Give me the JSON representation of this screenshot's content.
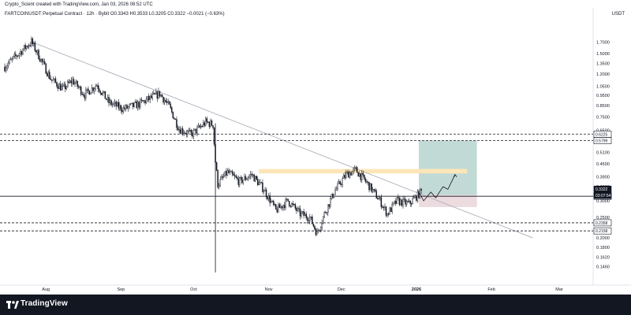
{
  "header": {
    "credit": "Crypto_Scient created with TradingView.com, Jan 03, 2026 08:52 UTC",
    "symbol_line": "FARTCOINUSDT Perpetual Contract · 12h · Bybit  O0.3343  H0.3533  L0.3205  C0.3322  −0.0021 (−0.63%)",
    "currency": "USDT"
  },
  "footer": {
    "brand": "TradingView"
  },
  "colors": {
    "background": "#ffffff",
    "candle": "#131722",
    "trendline": "#b2b5be",
    "dashed_level": "#131722",
    "target_zone": "#b7d3cf",
    "stop_zone": "#ead7dc",
    "resistance_band": "#fce6b8",
    "price_tag": "#131722",
    "footer_bg": "#131722"
  },
  "chart_data": {
    "type": "candlestick",
    "y_scale": "log",
    "y_tick_labels": [
      "1.7000",
      "1.5000",
      "1.3500",
      "1.2000",
      "1.0500",
      "0.9500",
      "0.8500",
      "0.7500",
      "0.6500",
      "0.5100",
      "0.4500",
      "0.3900",
      "0.3500",
      "0.3000",
      "0.2500",
      "0.2000",
      "0.1800",
      "0.1620",
      "0.1460"
    ],
    "x_tick_labels": [
      "Aug",
      "Sep",
      "Oct",
      "Nov",
      "Dec",
      "2026",
      "Feb",
      "Mar"
    ],
    "x_range": [
      "2025-07-15",
      "2026-03-15"
    ],
    "y_range": [
      0.13,
      2.05
    ],
    "last_price_label": "0.3322",
    "countdown_label": "03:07:54",
    "close_series": [
      {
        "date": "2025-07-15",
        "close": 1.3
      },
      {
        "date": "2025-07-22",
        "close": 1.55
      },
      {
        "date": "2025-07-26",
        "close": 1.71
      },
      {
        "date": "2025-07-30",
        "close": 1.4
      },
      {
        "date": "2025-08-03",
        "close": 1.14
      },
      {
        "date": "2025-08-08",
        "close": 1.02
      },
      {
        "date": "2025-08-12",
        "close": 1.12
      },
      {
        "date": "2025-08-17",
        "close": 0.96
      },
      {
        "date": "2025-08-22",
        "close": 1.07
      },
      {
        "date": "2025-08-27",
        "close": 0.88
      },
      {
        "date": "2025-09-02",
        "close": 0.82
      },
      {
        "date": "2025-09-08",
        "close": 0.86
      },
      {
        "date": "2025-09-13",
        "close": 0.92
      },
      {
        "date": "2025-09-17",
        "close": 0.97
      },
      {
        "date": "2025-09-21",
        "close": 0.84
      },
      {
        "date": "2025-09-25",
        "close": 0.66
      },
      {
        "date": "2025-09-30",
        "close": 0.62
      },
      {
        "date": "2025-10-03",
        "close": 0.66
      },
      {
        "date": "2025-10-06",
        "close": 0.71
      },
      {
        "date": "2025-10-09",
        "close": 0.69
      },
      {
        "date": "2025-10-10",
        "close": 0.46
      },
      {
        "date": "2025-10-11",
        "close": 0.36
      },
      {
        "date": "2025-10-15",
        "close": 0.41
      },
      {
        "date": "2025-10-20",
        "close": 0.37
      },
      {
        "date": "2025-10-25",
        "close": 0.4
      },
      {
        "date": "2025-10-30",
        "close": 0.34
      },
      {
        "date": "2025-11-04",
        "close": 0.27
      },
      {
        "date": "2025-11-09",
        "close": 0.3
      },
      {
        "date": "2025-11-14",
        "close": 0.26
      },
      {
        "date": "2025-11-18",
        "close": 0.25
      },
      {
        "date": "2025-11-21",
        "close": 0.21
      },
      {
        "date": "2025-11-24",
        "close": 0.26
      },
      {
        "date": "2025-11-28",
        "close": 0.33
      },
      {
        "date": "2025-12-03",
        "close": 0.4
      },
      {
        "date": "2025-12-07",
        "close": 0.42
      },
      {
        "date": "2025-12-12",
        "close": 0.36
      },
      {
        "date": "2025-12-17",
        "close": 0.3
      },
      {
        "date": "2025-12-20",
        "close": 0.26
      },
      {
        "date": "2025-12-24",
        "close": 0.3
      },
      {
        "date": "2025-12-29",
        "close": 0.29
      },
      {
        "date": "2026-01-03",
        "close": 0.3322
      }
    ],
    "horizontal_levels": [
      {
        "price": 0.6225,
        "label": "0.6225",
        "style": "dashed"
      },
      {
        "price": 0.5799,
        "label": "0.5799",
        "style": "dashed"
      },
      {
        "price": 0.3153,
        "label": "0.3153",
        "style": "solid"
      },
      {
        "price": 0.2358,
        "label": "0.2358",
        "style": "dashed"
      },
      {
        "price": 0.2158,
        "label": "0.2158",
        "style": "dashed"
      }
    ],
    "trendline": {
      "from": {
        "date": "2025-07-26",
        "price": 1.71
      },
      "to": {
        "date": "2026-02-18",
        "price": 0.2
      }
    },
    "resistance_band": {
      "from_date": "2025-10-28",
      "to_date": "2026-01-22",
      "low": 0.405,
      "high": 0.425
    },
    "position": {
      "from_date": "2026-01-02",
      "to_date": "2026-01-26",
      "entry": 0.32,
      "target": 0.58,
      "stop": 0.28
    },
    "projected_path": [
      {
        "date": "2026-01-02",
        "price": 0.33
      },
      {
        "date": "2026-01-04",
        "price": 0.3
      },
      {
        "date": "2026-01-07",
        "price": 0.33
      },
      {
        "date": "2026-01-09",
        "price": 0.31
      },
      {
        "date": "2026-01-12",
        "price": 0.35
      },
      {
        "date": "2026-01-14",
        "price": 0.34
      },
      {
        "date": "2026-01-17",
        "price": 0.4
      }
    ]
  }
}
